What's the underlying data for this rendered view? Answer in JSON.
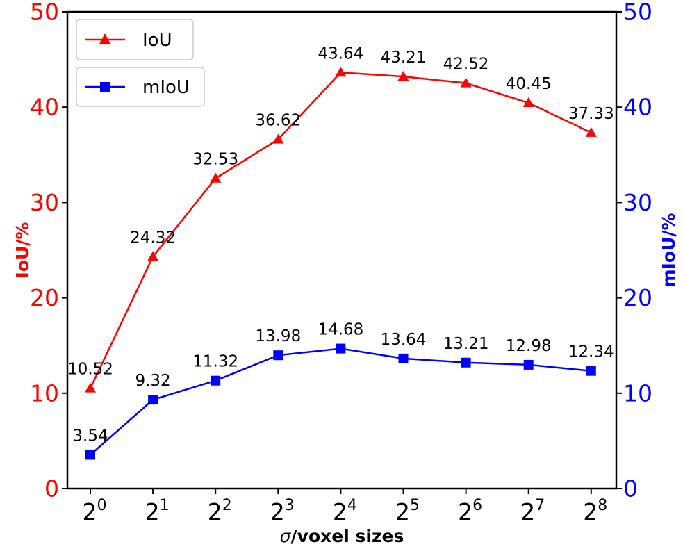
{
  "colors": {
    "iou": "#ff0000",
    "miou": "#0000ff",
    "axis": "#000000"
  },
  "chart_data": {
    "type": "line",
    "categories": [
      "0",
      "1",
      "2",
      "3",
      "4",
      "5",
      "6",
      "7",
      "8"
    ],
    "x_tick_base": "2",
    "xlabel_symbol": "σ",
    "xlabel_rest": "/voxel sizes",
    "ylabel_left": "IoU/%",
    "ylabel_right": "mIoU/%",
    "ylim_left": [
      0,
      50
    ],
    "ylim_right": [
      0,
      50
    ],
    "yticks_left": [
      "0",
      "10",
      "20",
      "30",
      "40",
      "50"
    ],
    "yticks_right": [
      "0",
      "10",
      "20",
      "30",
      "40",
      "50"
    ],
    "grid": false,
    "legend_position": "top-left",
    "series": [
      {
        "name": "IoU",
        "axis": "left",
        "marker": "triangle",
        "color": "#ff0000",
        "values": [
          10.52,
          24.32,
          32.53,
          36.62,
          43.64,
          43.21,
          42.52,
          40.45,
          37.33
        ],
        "labels": [
          "10.52",
          "24.32",
          "32.53",
          "36.62",
          "43.64",
          "43.21",
          "42.52",
          "40.45",
          "37.33"
        ]
      },
      {
        "name": "mIoU",
        "axis": "right",
        "marker": "square",
        "color": "#0000ff",
        "values": [
          3.54,
          9.32,
          11.32,
          13.98,
          14.68,
          13.64,
          13.21,
          12.98,
          12.34
        ],
        "labels": [
          "3.54",
          "9.32",
          "11.32",
          "13.98",
          "14.68",
          "13.64",
          "13.21",
          "12.98",
          "12.34"
        ]
      }
    ]
  }
}
